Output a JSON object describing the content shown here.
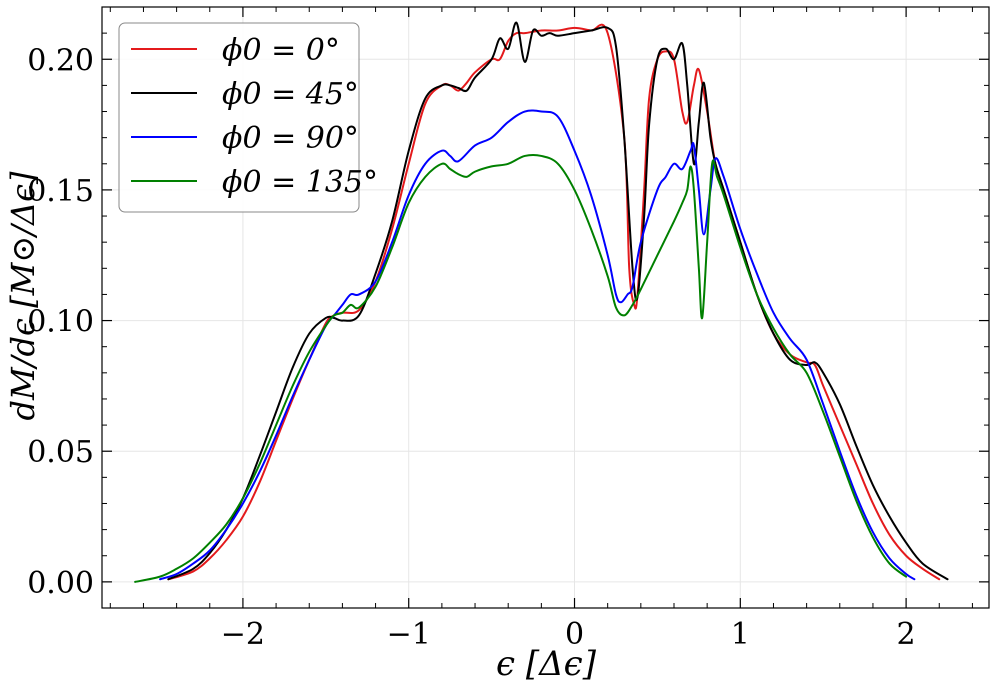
{
  "chart_data": {
    "type": "line",
    "title": "",
    "xlabel": "ϵ [Δϵ]",
    "ylabel": "dM/dϵ [M⊙/Δϵ]",
    "xlim": [
      -2.85,
      2.5
    ],
    "ylim": [
      -0.01,
      0.22
    ],
    "x_ticks": [
      -2,
      -1,
      0,
      1,
      2
    ],
    "x_tick_labels": [
      "−2",
      "−1",
      "0",
      "1",
      "2"
    ],
    "y_ticks": [
      0.0,
      0.05,
      0.1,
      0.15,
      0.2
    ],
    "y_tick_labels": [
      "0.00",
      "0.05",
      "0.10",
      "0.15",
      "0.20"
    ],
    "grid": true,
    "legend_position": "top-left",
    "series": [
      {
        "name": "ϕ0 = 0°",
        "color": "#e41a1c",
        "x": [
          -2.45,
          -2.3,
          -2.2,
          -2.1,
          -2.0,
          -1.9,
          -1.8,
          -1.7,
          -1.6,
          -1.5,
          -1.45,
          -1.4,
          -1.3,
          -1.2,
          -1.1,
          -1.0,
          -0.9,
          -0.8,
          -0.75,
          -0.7,
          -0.65,
          -0.6,
          -0.5,
          -0.45,
          -0.4,
          -0.35,
          -0.3,
          -0.2,
          -0.1,
          0.0,
          0.1,
          0.2,
          0.3,
          0.33,
          0.36,
          0.38,
          0.42,
          0.45,
          0.5,
          0.55,
          0.6,
          0.65,
          0.68,
          0.72,
          0.75,
          0.8,
          0.85,
          0.9,
          1.0,
          1.1,
          1.2,
          1.3,
          1.4,
          1.45,
          1.5,
          1.6,
          1.7,
          1.8,
          1.9,
          2.0,
          2.1,
          2.2
        ],
        "values": [
          0.001,
          0.004,
          0.009,
          0.016,
          0.025,
          0.038,
          0.054,
          0.07,
          0.085,
          0.099,
          0.102,
          0.103,
          0.104,
          0.115,
          0.135,
          0.16,
          0.183,
          0.19,
          0.19,
          0.188,
          0.191,
          0.195,
          0.2,
          0.2,
          0.207,
          0.21,
          0.21,
          0.211,
          0.211,
          0.212,
          0.211,
          0.21,
          0.17,
          0.12,
          0.106,
          0.11,
          0.15,
          0.185,
          0.2,
          0.203,
          0.2,
          0.18,
          0.176,
          0.19,
          0.196,
          0.18,
          0.16,
          0.15,
          0.13,
          0.11,
          0.095,
          0.087,
          0.084,
          0.083,
          0.075,
          0.06,
          0.045,
          0.03,
          0.018,
          0.01,
          0.005,
          0.001
        ]
      },
      {
        "name": "ϕ0 = 45°",
        "color": "#000000",
        "x": [
          -2.45,
          -2.3,
          -2.2,
          -2.1,
          -2.0,
          -1.9,
          -1.8,
          -1.7,
          -1.6,
          -1.5,
          -1.45,
          -1.4,
          -1.3,
          -1.2,
          -1.1,
          -1.0,
          -0.9,
          -0.8,
          -0.75,
          -0.7,
          -0.65,
          -0.6,
          -0.5,
          -0.45,
          -0.4,
          -0.35,
          -0.3,
          -0.25,
          -0.2,
          -0.15,
          -0.1,
          0.0,
          0.1,
          0.2,
          0.25,
          0.3,
          0.35,
          0.38,
          0.42,
          0.45,
          0.5,
          0.55,
          0.6,
          0.65,
          0.68,
          0.72,
          0.75,
          0.78,
          0.82,
          0.85,
          0.9,
          1.0,
          1.1,
          1.2,
          1.3,
          1.4,
          1.45,
          1.5,
          1.6,
          1.7,
          1.8,
          1.9,
          2.0,
          2.1,
          2.25
        ],
        "values": [
          0.001,
          0.005,
          0.011,
          0.02,
          0.032,
          0.048,
          0.065,
          0.082,
          0.095,
          0.101,
          0.101,
          0.1,
          0.102,
          0.118,
          0.138,
          0.165,
          0.185,
          0.19,
          0.19,
          0.189,
          0.188,
          0.193,
          0.2,
          0.208,
          0.204,
          0.214,
          0.199,
          0.211,
          0.209,
          0.21,
          0.209,
          0.21,
          0.211,
          0.212,
          0.205,
          0.17,
          0.12,
          0.109,
          0.14,
          0.175,
          0.2,
          0.204,
          0.2,
          0.206,
          0.19,
          0.16,
          0.176,
          0.191,
          0.17,
          0.16,
          0.15,
          0.13,
          0.11,
          0.095,
          0.085,
          0.083,
          0.084,
          0.08,
          0.068,
          0.052,
          0.037,
          0.025,
          0.015,
          0.007,
          0.001
        ]
      },
      {
        "name": "ϕ0 = 90°",
        "color": "#0000ff",
        "x": [
          -2.5,
          -2.4,
          -2.3,
          -2.2,
          -2.1,
          -2.0,
          -1.9,
          -1.8,
          -1.7,
          -1.6,
          -1.5,
          -1.45,
          -1.4,
          -1.35,
          -1.3,
          -1.2,
          -1.1,
          -1.0,
          -0.9,
          -0.8,
          -0.75,
          -0.7,
          -0.6,
          -0.5,
          -0.4,
          -0.3,
          -0.2,
          -0.1,
          0.0,
          0.1,
          0.2,
          0.25,
          0.28,
          0.32,
          0.35,
          0.4,
          0.5,
          0.55,
          0.6,
          0.65,
          0.7,
          0.72,
          0.75,
          0.78,
          0.82,
          0.85,
          0.9,
          1.0,
          1.1,
          1.2,
          1.3,
          1.4,
          1.5,
          1.6,
          1.7,
          1.8,
          1.9,
          2.0,
          2.05
        ],
        "values": [
          0.001,
          0.003,
          0.007,
          0.012,
          0.02,
          0.03,
          0.042,
          0.056,
          0.071,
          0.085,
          0.098,
          0.102,
          0.106,
          0.11,
          0.11,
          0.115,
          0.13,
          0.148,
          0.16,
          0.165,
          0.163,
          0.161,
          0.167,
          0.17,
          0.176,
          0.18,
          0.18,
          0.178,
          0.165,
          0.148,
          0.125,
          0.11,
          0.107,
          0.11,
          0.113,
          0.13,
          0.15,
          0.155,
          0.16,
          0.158,
          0.165,
          0.167,
          0.15,
          0.133,
          0.15,
          0.162,
          0.155,
          0.135,
          0.118,
          0.103,
          0.093,
          0.085,
          0.068,
          0.05,
          0.033,
          0.019,
          0.009,
          0.003,
          0.001
        ]
      },
      {
        "name": "ϕ0 = 135°",
        "color": "#008000",
        "x": [
          -2.65,
          -2.5,
          -2.4,
          -2.3,
          -2.2,
          -2.1,
          -2.0,
          -1.9,
          -1.8,
          -1.7,
          -1.6,
          -1.5,
          -1.45,
          -1.4,
          -1.35,
          -1.3,
          -1.2,
          -1.1,
          -1.0,
          -0.9,
          -0.8,
          -0.75,
          -0.7,
          -0.65,
          -0.6,
          -0.5,
          -0.4,
          -0.3,
          -0.2,
          -0.1,
          0.0,
          0.1,
          0.2,
          0.25,
          0.3,
          0.35,
          0.4,
          0.5,
          0.6,
          0.65,
          0.68,
          0.7,
          0.72,
          0.75,
          0.77,
          0.8,
          0.83,
          0.86,
          0.9,
          1.0,
          1.1,
          1.2,
          1.3,
          1.4,
          1.5,
          1.6,
          1.7,
          1.8,
          1.9,
          2.0
        ],
        "values": [
          0.0,
          0.002,
          0.005,
          0.009,
          0.015,
          0.022,
          0.032,
          0.045,
          0.06,
          0.075,
          0.088,
          0.098,
          0.102,
          0.103,
          0.106,
          0.105,
          0.113,
          0.128,
          0.145,
          0.155,
          0.16,
          0.158,
          0.156,
          0.155,
          0.157,
          0.159,
          0.16,
          0.163,
          0.163,
          0.16,
          0.15,
          0.135,
          0.117,
          0.105,
          0.102,
          0.106,
          0.112,
          0.125,
          0.138,
          0.145,
          0.15,
          0.159,
          0.15,
          0.12,
          0.101,
          0.13,
          0.16,
          0.155,
          0.148,
          0.128,
          0.11,
          0.097,
          0.087,
          0.08,
          0.065,
          0.048,
          0.031,
          0.017,
          0.007,
          0.002
        ]
      }
    ]
  }
}
